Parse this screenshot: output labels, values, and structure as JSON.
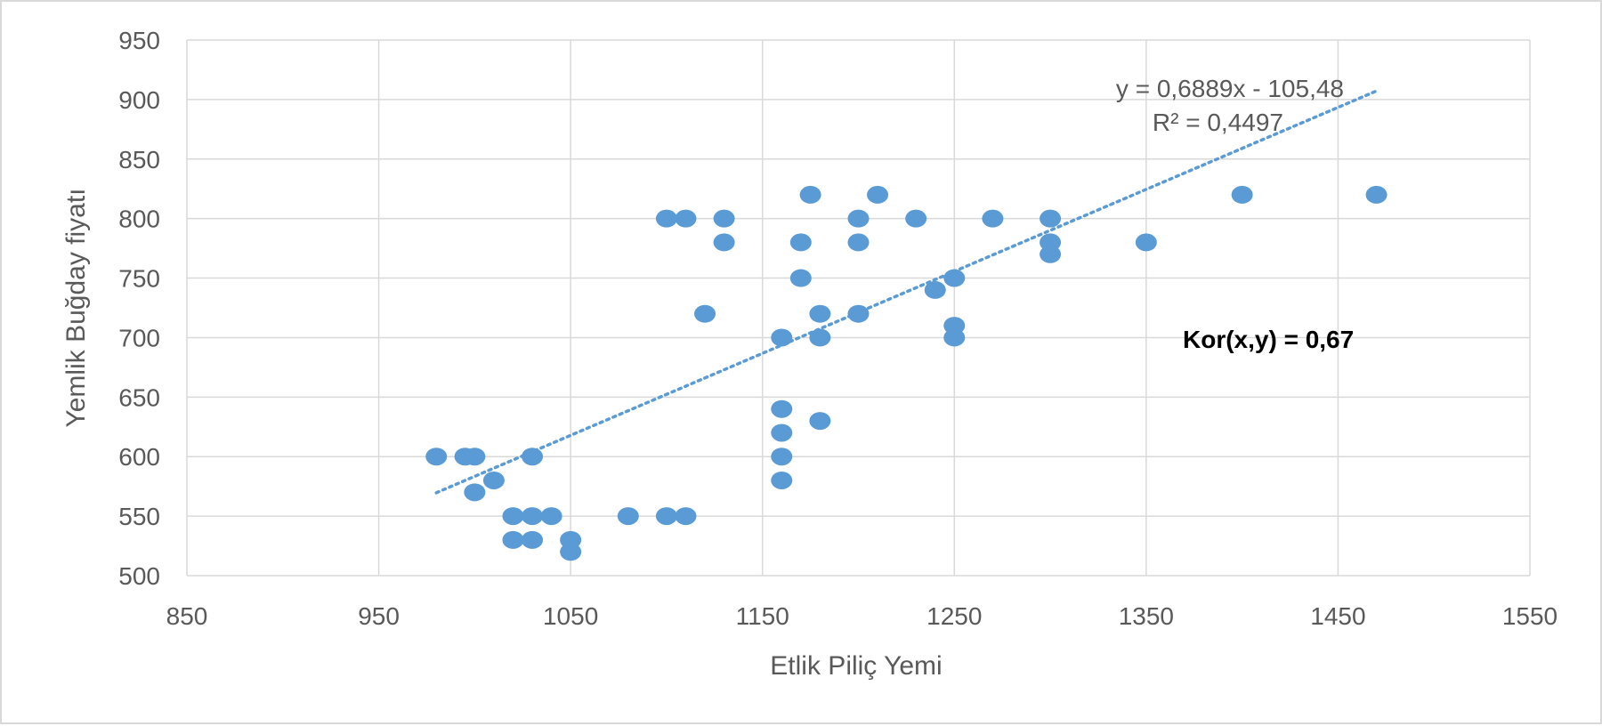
{
  "chart_data": {
    "type": "scatter",
    "title": "",
    "xlabel": "Etlik Piliç Yemi",
    "ylabel": "Yemlik Buğday fiyatı",
    "xlim": [
      850,
      1550
    ],
    "ylim": [
      500,
      950
    ],
    "x_ticks": [
      850,
      950,
      1050,
      1150,
      1250,
      1350,
      1450,
      1550
    ],
    "y_ticks": [
      500,
      550,
      600,
      650,
      700,
      750,
      800,
      850,
      900,
      950
    ],
    "grid": true,
    "legend": "none",
    "marker_color": "#5b9bd5",
    "trendline": {
      "type": "linear",
      "slope": 0.6889,
      "intercept": -105.48,
      "x_range": [
        980,
        1470
      ],
      "style": "dotted",
      "color": "#5b9bd5",
      "equation_label": "y = 0,6889x - 105,48",
      "r2_label": "R² = 0,4497"
    },
    "annotation": "Kor(x,y) = 0,67",
    "points": [
      {
        "x": 980,
        "y": 600
      },
      {
        "x": 995,
        "y": 600
      },
      {
        "x": 1000,
        "y": 600
      },
      {
        "x": 1000,
        "y": 570
      },
      {
        "x": 1010,
        "y": 580
      },
      {
        "x": 1020,
        "y": 550
      },
      {
        "x": 1020,
        "y": 530
      },
      {
        "x": 1030,
        "y": 600
      },
      {
        "x": 1030,
        "y": 550
      },
      {
        "x": 1030,
        "y": 530
      },
      {
        "x": 1040,
        "y": 550
      },
      {
        "x": 1050,
        "y": 530
      },
      {
        "x": 1050,
        "y": 520
      },
      {
        "x": 1080,
        "y": 550
      },
      {
        "x": 1100,
        "y": 550
      },
      {
        "x": 1100,
        "y": 800
      },
      {
        "x": 1110,
        "y": 550
      },
      {
        "x": 1110,
        "y": 800
      },
      {
        "x": 1120,
        "y": 720
      },
      {
        "x": 1130,
        "y": 800
      },
      {
        "x": 1130,
        "y": 780
      },
      {
        "x": 1160,
        "y": 700
      },
      {
        "x": 1160,
        "y": 640
      },
      {
        "x": 1160,
        "y": 620
      },
      {
        "x": 1160,
        "y": 600
      },
      {
        "x": 1160,
        "y": 580
      },
      {
        "x": 1170,
        "y": 780
      },
      {
        "x": 1170,
        "y": 750
      },
      {
        "x": 1175,
        "y": 820
      },
      {
        "x": 1180,
        "y": 720
      },
      {
        "x": 1180,
        "y": 700
      },
      {
        "x": 1180,
        "y": 630
      },
      {
        "x": 1200,
        "y": 800
      },
      {
        "x": 1200,
        "y": 780
      },
      {
        "x": 1200,
        "y": 720
      },
      {
        "x": 1210,
        "y": 820
      },
      {
        "x": 1230,
        "y": 800
      },
      {
        "x": 1240,
        "y": 740
      },
      {
        "x": 1250,
        "y": 750
      },
      {
        "x": 1250,
        "y": 710
      },
      {
        "x": 1250,
        "y": 700
      },
      {
        "x": 1270,
        "y": 800
      },
      {
        "x": 1300,
        "y": 800
      },
      {
        "x": 1300,
        "y": 780
      },
      {
        "x": 1300,
        "y": 770
      },
      {
        "x": 1350,
        "y": 780
      },
      {
        "x": 1400,
        "y": 820
      },
      {
        "x": 1470,
        "y": 820
      }
    ]
  }
}
